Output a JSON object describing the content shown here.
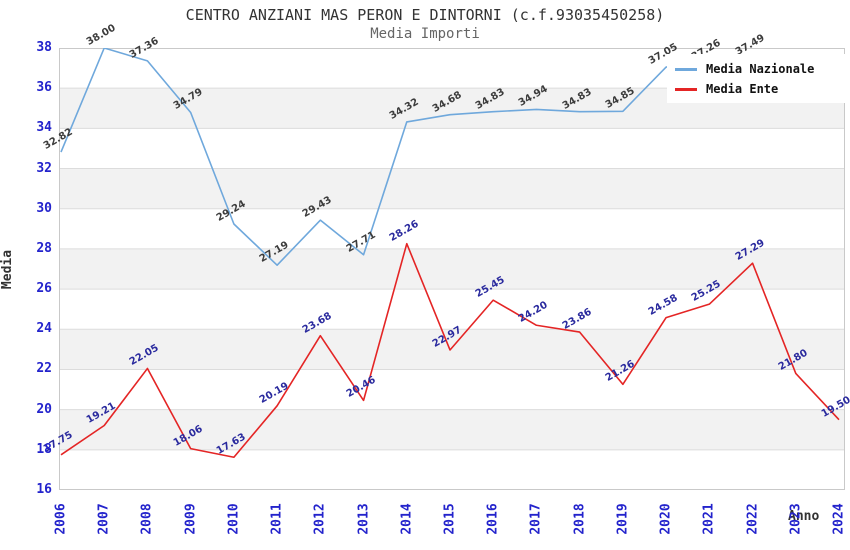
{
  "header": {
    "title": "CENTRO ANZIANI MAS PERON E DINTORNI (c.f.93035450258)",
    "subtitle": "Media Importi"
  },
  "chart_data": {
    "type": "line",
    "x": [
      2006,
      2007,
      2008,
      2009,
      2010,
      2011,
      2012,
      2013,
      2014,
      2015,
      2016,
      2017,
      2018,
      2019,
      2020,
      2021,
      2022,
      2023,
      2024
    ],
    "series": [
      {
        "name": "Media Nazionale",
        "color": "#6fa8dc",
        "label_color": "#3c3c3c",
        "values": [
          32.82,
          38.0,
          37.36,
          34.79,
          29.24,
          27.19,
          29.43,
          27.71,
          34.32,
          34.68,
          34.83,
          34.94,
          34.83,
          34.85,
          37.05,
          37.26,
          37.49,
          null,
          null
        ]
      },
      {
        "name": "Media Ente",
        "color": "#e42525",
        "label_color": "#2a2a9e",
        "values": [
          17.75,
          19.21,
          22.05,
          18.06,
          17.63,
          20.19,
          23.68,
          20.46,
          28.26,
          22.97,
          25.45,
          24.2,
          23.86,
          21.26,
          24.58,
          25.25,
          27.29,
          21.8,
          19.5
        ]
      }
    ],
    "xlabel": "Anno",
    "ylabel": "Media",
    "ylim": [
      16,
      38
    ],
    "yticks": [
      16,
      18,
      20,
      22,
      24,
      26,
      28,
      30,
      32,
      34,
      36,
      38
    ],
    "grid": "horizontal",
    "band_fill": "#f2f2f2",
    "gridline_color": "#dcdcdc",
    "border_color": "#c9c9c9",
    "tick_color": "#2323cc",
    "legend_position": "top-right",
    "label_decimals": 2
  }
}
